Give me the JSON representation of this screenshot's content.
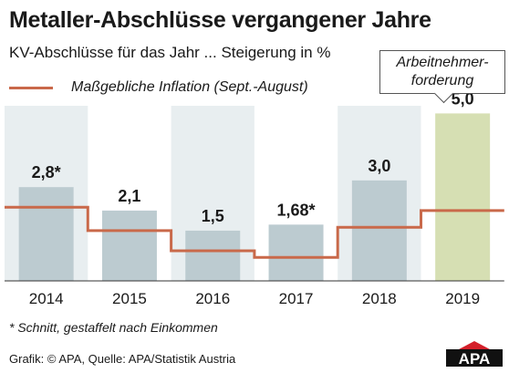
{
  "header": {
    "title": "Metaller-Abschlüsse vergangener Jahre",
    "subtitle": "KV-Abschlüsse für das Jahr ... Steigerung in %"
  },
  "legend": {
    "line_label": "Maßgebliche Inflation (Sept.-August)"
  },
  "callout": {
    "line1": "Arbeitnehmer-",
    "line2": "forderung"
  },
  "footnote": "* Schnitt, gestaffelt nach Einkommen",
  "source": "Grafik: © APA, Quelle: APA/Statistik Austria",
  "logo_text": "APA",
  "colors": {
    "bar": "#bccbd0",
    "bar_highlight": "#d6dfb3",
    "column_bg": "#e8eef0",
    "inflation_line": "#c9694a"
  },
  "chart_data": {
    "type": "bar",
    "categories": [
      "2014",
      "2015",
      "2016",
      "2017",
      "2018",
      "2019"
    ],
    "values": [
      2.8,
      2.1,
      1.5,
      1.68,
      3.0,
      5.0
    ],
    "value_labels": [
      "2,8*",
      "2,1",
      "1,5",
      "1,68*",
      "3,0",
      "5,0"
    ],
    "highlight_index": 5,
    "inflation": [
      2.2,
      1.5,
      0.9,
      0.7,
      1.6,
      2.1
    ],
    "ylim": [
      0,
      5.8
    ]
  }
}
